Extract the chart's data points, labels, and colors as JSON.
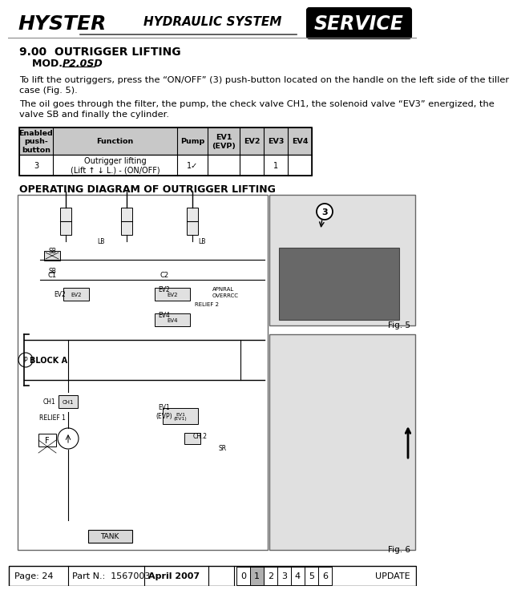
{
  "title_left": "HYSTER",
  "title_center": "HYDRAULIC SYSTEM",
  "title_right": "SERVICE",
  "section_title": "9.00  OUTRIGGER LIFTING",
  "section_subtitle_prefix": "MOD.  ",
  "section_subtitle_model": "P2.0SD",
  "para1_line1": "To lift the outriggers, press the “ON/OFF” (3) push-button located on the handle on the left side of the tiller",
  "para1_line2": "case (Fig. 5).",
  "para2_line1": "The oil goes through the filter, the pump, the check valve CH1, the solenoid valve “EV3” energized, the",
  "para2_line2": "valve SB and finally the cylinder.",
  "table_headers": [
    "Enabled\npush-\nbutton",
    "Function",
    "Pump",
    "EV1\n(EVP)",
    "EV2",
    "EV3",
    "EV4"
  ],
  "table_row": [
    "3",
    "Outrigger lifting\n(Lift ↑ ↓ L.) - (ON/OFF)",
    "1✓",
    "",
    "",
    "1",
    ""
  ],
  "diagram_title": "OPERATING DIAGRAM OF OUTRIGGER LIFTING",
  "footer_page": "Page: 24",
  "footer_part": "Part N.:  1567003",
  "footer_date": "April 2007",
  "footer_numbers": [
    "0",
    "1",
    "2",
    "3",
    "4",
    "5",
    "6"
  ],
  "footer_highlighted": 1,
  "footer_update": "UPDATE",
  "bg_color": "#ffffff",
  "table_header_bg": "#c8c8c8",
  "service_bg": "#000000",
  "service_fg": "#ffffff"
}
